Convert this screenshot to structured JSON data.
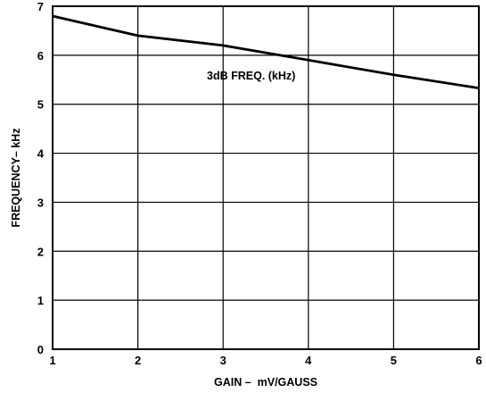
{
  "chart_data": {
    "type": "line",
    "xlabel": "GAIN –  mV/GAUSS",
    "ylabel": "FREQUENCY– kHz",
    "xlim": [
      1,
      6
    ],
    "ylim": [
      0,
      7
    ],
    "x_ticks": [
      "1",
      "2",
      "3",
      "4",
      "5",
      "6"
    ],
    "y_ticks": [
      "0",
      "1",
      "2",
      "3",
      "4",
      "5",
      "6",
      "7"
    ],
    "grid": true,
    "series": [
      {
        "name": "3dB FREQ. (kHz)",
        "x": [
          1,
          2,
          3,
          4,
          5,
          6
        ],
        "y": [
          6.8,
          6.4,
          6.2,
          5.9,
          5.6,
          5.33
        ]
      }
    ],
    "annotations": [
      {
        "text": "3dB FREQ. (kHz)",
        "x": 3.8,
        "y": 5.6
      }
    ]
  }
}
